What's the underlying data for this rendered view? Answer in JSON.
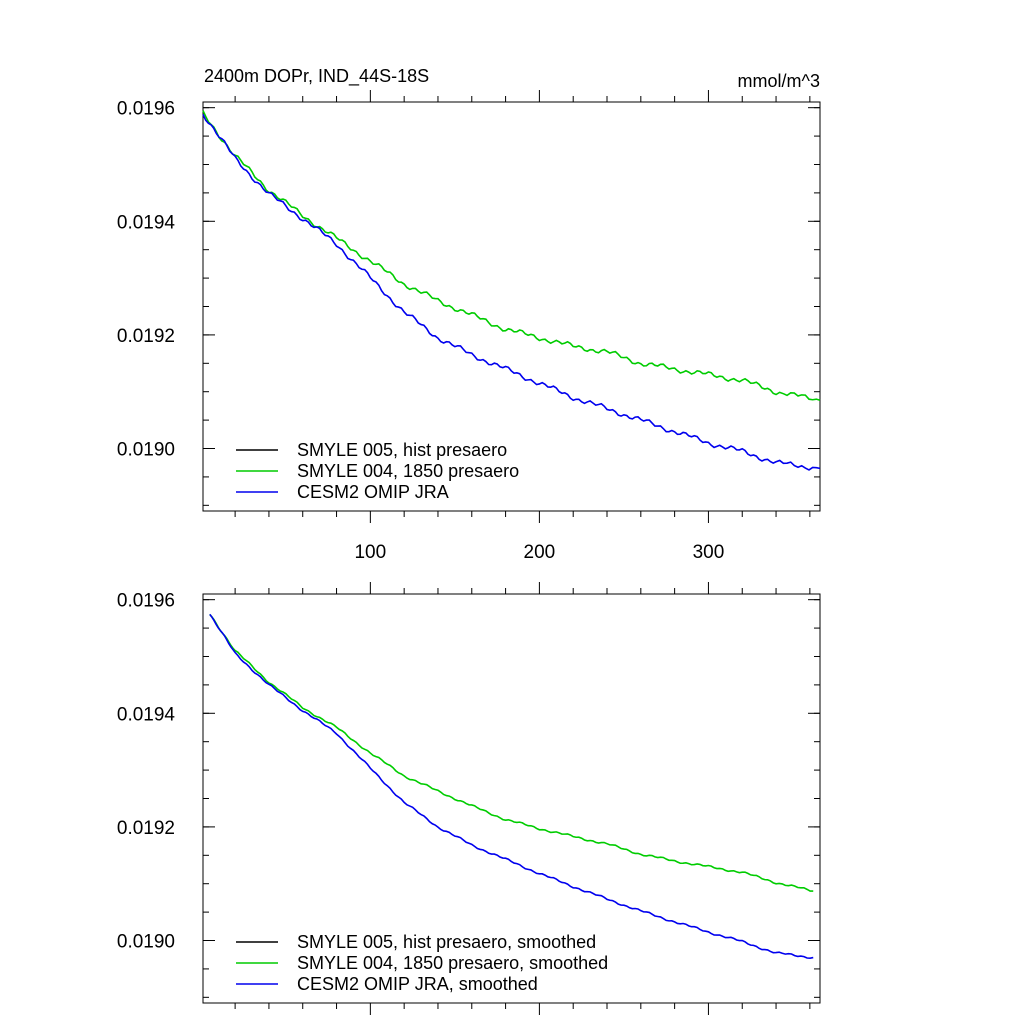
{
  "title_left": "2400m DOPr, IND_44S-18S",
  "title_right": "mmol/m^3",
  "colors": {
    "smyle005": "#000000",
    "smyle004": "#00cc00",
    "omip": "#0000ee"
  },
  "chart_data": [
    {
      "type": "line",
      "panel": "top",
      "xlim": [
        1,
        366
      ],
      "ylim": [
        0.01889,
        0.01961
      ],
      "x_ticks": [
        100,
        200,
        300
      ],
      "x_tick_labels": [
        "100",
        "200",
        "300"
      ],
      "y_ticks": [
        0.019,
        0.0192,
        0.0194,
        0.0196
      ],
      "y_tick_labels": [
        "0.0190",
        "0.0192",
        "0.0194",
        "0.0196"
      ],
      "legend_position": "bottom-left",
      "series": [
        {
          "name": "SMYLE 005, hist presaero",
          "color": "#000000",
          "style": "legend-only",
          "x": [],
          "y": []
        },
        {
          "name": "SMYLE 004, 1850 presaero",
          "color": "#00cc00",
          "x": [
            1,
            20,
            40,
            60,
            80,
            100,
            120,
            140,
            160,
            180,
            200,
            220,
            240,
            260,
            280,
            300,
            320,
            340,
            366
          ],
          "y": [
            0.01959,
            0.019515,
            0.019455,
            0.01941,
            0.01937,
            0.01933,
            0.01929,
            0.01926,
            0.019235,
            0.01921,
            0.019195,
            0.01918,
            0.01917,
            0.01915,
            0.01914,
            0.01913,
            0.01912,
            0.0191,
            0.019085
          ]
        },
        {
          "name": "CESM2 OMIP JRA",
          "color": "#0000ee",
          "x": [
            1,
            20,
            40,
            60,
            80,
            100,
            120,
            140,
            160,
            180,
            200,
            220,
            240,
            260,
            280,
            300,
            320,
            340,
            366
          ],
          "y": [
            0.01959,
            0.01951,
            0.019448,
            0.019405,
            0.01936,
            0.0193,
            0.01924,
            0.019195,
            0.019165,
            0.01914,
            0.019115,
            0.01909,
            0.01907,
            0.01905,
            0.01903,
            0.01901,
            0.018995,
            0.018975,
            0.018965
          ]
        }
      ]
    },
    {
      "type": "line",
      "panel": "bottom",
      "xlim": [
        1,
        366
      ],
      "ylim": [
        0.01889,
        0.01961
      ],
      "x_ticks": [
        100,
        200,
        300
      ],
      "x_tick_labels": [],
      "y_ticks": [
        0.019,
        0.0192,
        0.0194,
        0.0196
      ],
      "y_tick_labels": [
        "0.0190",
        "0.0192",
        "0.0194",
        "0.0196"
      ],
      "legend_position": "bottom-left",
      "series": [
        {
          "name": "SMYLE 005, hist presaero, smoothed",
          "color": "#000000",
          "style": "legend-only",
          "x": [],
          "y": []
        },
        {
          "name": "SMYLE 004, 1850 presaero, smoothed",
          "color": "#00cc00",
          "x": [
            5,
            20,
            40,
            60,
            80,
            100,
            120,
            140,
            160,
            180,
            200,
            220,
            240,
            260,
            280,
            300,
            320,
            340,
            362
          ],
          "y": [
            0.019575,
            0.01951,
            0.019455,
            0.01941,
            0.019375,
            0.01933,
            0.01929,
            0.019263,
            0.019237,
            0.019213,
            0.019197,
            0.019183,
            0.01917,
            0.019152,
            0.01914,
            0.01913,
            0.01912,
            0.019102,
            0.019087
          ]
        },
        {
          "name": "CESM2 OMIP JRA, smoothed",
          "color": "#0000ee",
          "x": [
            5,
            20,
            40,
            60,
            80,
            100,
            120,
            140,
            160,
            180,
            200,
            220,
            240,
            260,
            280,
            300,
            320,
            340,
            362
          ],
          "y": [
            0.019575,
            0.019505,
            0.01945,
            0.019405,
            0.019365,
            0.019303,
            0.019243,
            0.0192,
            0.019168,
            0.019143,
            0.019118,
            0.019095,
            0.019073,
            0.019052,
            0.019033,
            0.019015,
            0.018998,
            0.018978,
            0.01897
          ]
        }
      ]
    }
  ]
}
